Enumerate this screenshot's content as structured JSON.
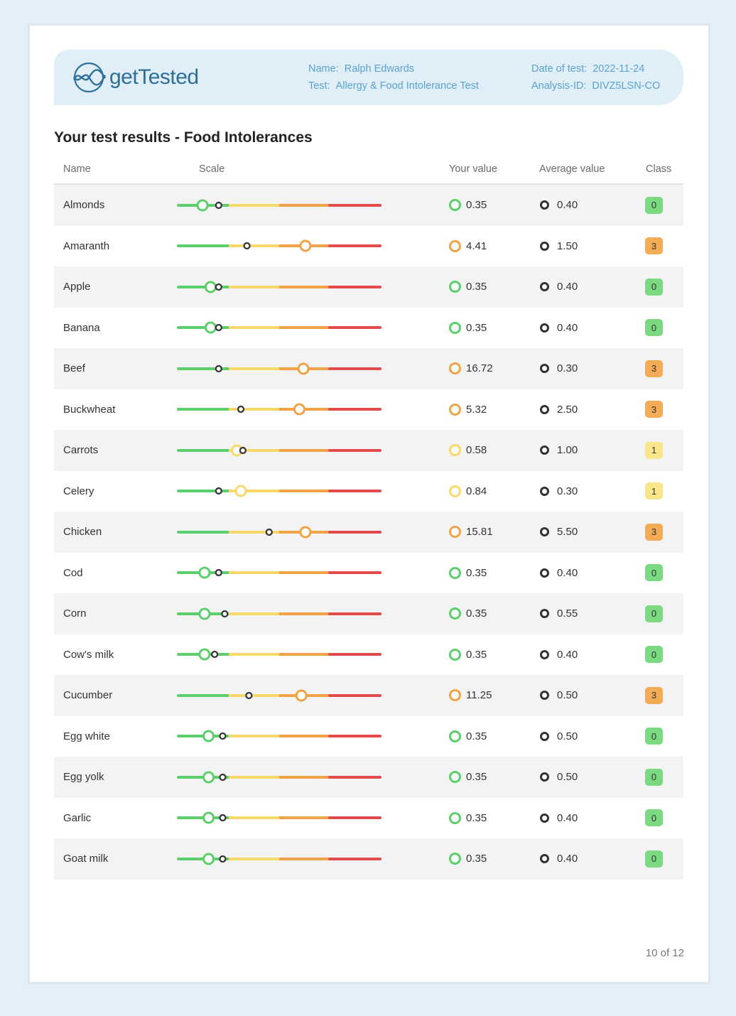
{
  "header": {
    "logo_text": "getTested",
    "name_label": "Name:",
    "name_value": "Ralph Edwards",
    "test_label": "Test:",
    "test_value": "Allergy & Food Intolerance Test",
    "date_label": "Date of test:",
    "date_value": "2022-11-24",
    "analysis_label": "Analysis-ID:",
    "analysis_value": "DIVZ5LSN-CO"
  },
  "section_title": "Your test results - Food Intolerances",
  "columns": {
    "name": "Name",
    "scale": "Scale",
    "your_value": "Your value",
    "average_value": "Average value",
    "class": "Class"
  },
  "colors": {
    "green": "#5ccf6a",
    "yellow": "#f6d96a",
    "orange": "#f0a346",
    "red": "#e14b4b",
    "class0_bg": "#7bd982",
    "class1_bg": "#fbe58a",
    "class3_bg": "#f3ab55"
  },
  "rows": [
    {
      "name": "Almonds",
      "value": "0.35",
      "average": "0.40",
      "class": "0",
      "your_pos": 0.12,
      "avg_pos": 0.2
    },
    {
      "name": "Amaranth",
      "value": "4.41",
      "average": "1.50",
      "class": "3",
      "your_pos": 0.63,
      "avg_pos": 0.34
    },
    {
      "name": "Apple",
      "value": "0.35",
      "average": "0.40",
      "class": "0",
      "your_pos": 0.16,
      "avg_pos": 0.2
    },
    {
      "name": "Banana",
      "value": "0.35",
      "average": "0.40",
      "class": "0",
      "your_pos": 0.16,
      "avg_pos": 0.2
    },
    {
      "name": "Beef",
      "value": "16.72",
      "average": "0.30",
      "class": "3",
      "your_pos": 0.62,
      "avg_pos": 0.2
    },
    {
      "name": "Buckwheat",
      "value": "5.32",
      "average": "2.50",
      "class": "3",
      "your_pos": 0.6,
      "avg_pos": 0.31
    },
    {
      "name": "Carrots",
      "value": "0.58",
      "average": "1.00",
      "class": "1",
      "your_pos": 0.29,
      "avg_pos": 0.32
    },
    {
      "name": "Celery",
      "value": "0.84",
      "average": "0.30",
      "class": "1",
      "your_pos": 0.31,
      "avg_pos": 0.2
    },
    {
      "name": "Chicken",
      "value": "15.81",
      "average": "5.50",
      "class": "3",
      "your_pos": 0.63,
      "avg_pos": 0.45
    },
    {
      "name": "Cod",
      "value": "0.35",
      "average": "0.40",
      "class": "0",
      "your_pos": 0.13,
      "avg_pos": 0.2
    },
    {
      "name": "Corn",
      "value": "0.35",
      "average": "0.55",
      "class": "0",
      "your_pos": 0.13,
      "avg_pos": 0.23
    },
    {
      "name": "Cow's milk",
      "value": "0.35",
      "average": "0.40",
      "class": "0",
      "your_pos": 0.13,
      "avg_pos": 0.18
    },
    {
      "name": "Cucumber",
      "value": "11.25",
      "average": "0.50",
      "class": "3",
      "your_pos": 0.61,
      "avg_pos": 0.35
    },
    {
      "name": "Egg white",
      "value": "0.35",
      "average": "0.50",
      "class": "0",
      "your_pos": 0.15,
      "avg_pos": 0.22
    },
    {
      "name": "Egg yolk",
      "value": "0.35",
      "average": "0.50",
      "class": "0",
      "your_pos": 0.15,
      "avg_pos": 0.22
    },
    {
      "name": "Garlic",
      "value": "0.35",
      "average": "0.40",
      "class": "0",
      "your_pos": 0.15,
      "avg_pos": 0.22
    },
    {
      "name": "Goat milk",
      "value": "0.35",
      "average": "0.40",
      "class": "0",
      "your_pos": 0.15,
      "avg_pos": 0.22
    }
  ],
  "footer": {
    "page": "10 of 12"
  }
}
